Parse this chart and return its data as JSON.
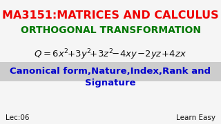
{
  "title_line1": "MA3151:MATRICES AND CALCULUS",
  "title_line2": "ORTHOGONAL TRANSFORMATION",
  "equation_text": "Q = 6x²+3y²+3z²−4xy−2yz+4zx",
  "subtitle_line1": "Canonical form,Nature,Index,Rank and",
  "subtitle_line2": "Signature",
  "bottom_left": "Lec:06",
  "bottom_right": "Learn Easy",
  "title_color": "#ee0000",
  "title2_color": "#007700",
  "subtitle_color": "#0000cc",
  "equation_color": "#111111",
  "bottom_text_color": "#111111",
  "bg_color": "#f0f0f0",
  "eq_band_color": "#aaaaaa",
  "fig_width": 3.2,
  "fig_height": 1.8,
  "dpi": 100
}
